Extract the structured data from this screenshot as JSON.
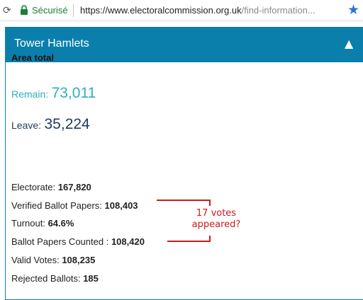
{
  "browser": {
    "secure_label": "Sécurisé",
    "url_host": "https://www.electoralcommission.org.uk",
    "url_path": "/find-information...",
    "reload_icon": "reload-icon",
    "lock_icon": "lock-icon",
    "star_icon": "bookmark-star-icon"
  },
  "panel": {
    "title": "Tower Hamlets",
    "toggle_icon": "▲",
    "area_total": "Area total",
    "remain_label": "Remain:",
    "remain_value": "73,011",
    "leave_label": "Leave:",
    "leave_value": "35,224",
    "stats": [
      {
        "label": "Electorate:",
        "value": "167,820"
      },
      {
        "label": "Verified Ballot Papers:",
        "value": "108,403"
      },
      {
        "label": "Turnout:",
        "value": "64.6%"
      },
      {
        "label": "Ballot Papers Counted :",
        "value": "108,420"
      },
      {
        "label": "Valid Votes:",
        "value": "108,235"
      },
      {
        "label": "Rejected Ballots:",
        "value": "185"
      }
    ]
  },
  "annotation": {
    "line1": "17 votes",
    "line2": "appeared?",
    "color": "#cc1b1b"
  },
  "colors": {
    "header": "#0b7fab",
    "remain": "#2bb0bf",
    "leave": "#1f3a5a",
    "secure": "#188038"
  }
}
